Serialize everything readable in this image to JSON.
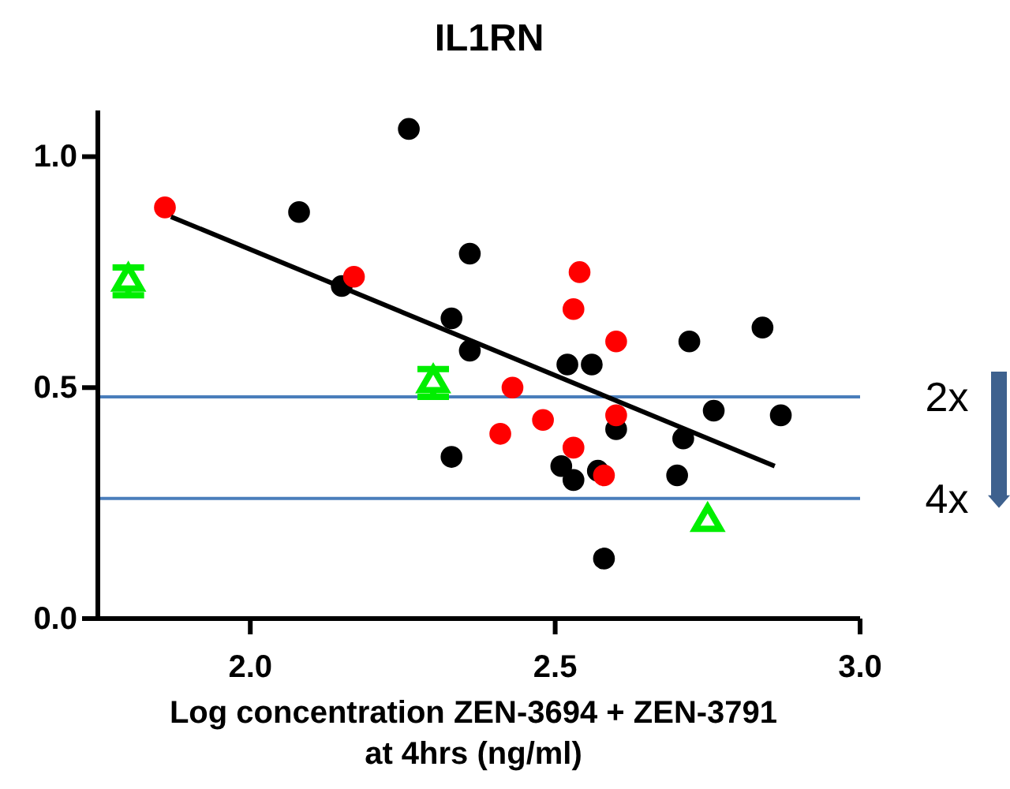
{
  "chart_data": {
    "type": "scatter",
    "title": "IL1RN",
    "xlabel": "Log concentration ZEN-3694 + ZEN-3791\nat 4hrs (ng/ml)",
    "xlim": [
      1.75,
      3.0
    ],
    "xticks": [
      {
        "value": 2.0,
        "label": "2.0"
      },
      {
        "value": 2.5,
        "label": "2.5"
      },
      {
        "value": 3.0,
        "label": "3.0"
      }
    ],
    "ylim": [
      0,
      1.1
    ],
    "yticks": [
      {
        "value": 0,
        "label": "0.0"
      },
      {
        "value": 0.5,
        "label": "0.5"
      },
      {
        "value": 1.0,
        "label": "1.0"
      }
    ],
    "grid": false,
    "ref_lines": [
      {
        "axis": "y",
        "value": 0.48,
        "label": "2x",
        "color": "#4a7ebb"
      },
      {
        "axis": "y",
        "value": 0.26,
        "label": "4x",
        "color": "#4a7ebb"
      }
    ],
    "series": [
      {
        "marker": "circle",
        "color": "#000000",
        "x": [
          2.08,
          2.15,
          2.26,
          2.36,
          2.33,
          2.36,
          2.33,
          2.52,
          2.56,
          2.72,
          2.84,
          2.76,
          2.87,
          2.6,
          2.71,
          2.51,
          2.53,
          2.57,
          2.7,
          2.58
        ],
        "values": [
          0.88,
          0.72,
          1.06,
          0.79,
          0.65,
          0.58,
          0.35,
          0.55,
          0.55,
          0.6,
          0.63,
          0.45,
          0.44,
          0.41,
          0.39,
          0.33,
          0.3,
          0.32,
          0.31,
          0.13
        ]
      },
      {
        "marker": "circle",
        "color": "#ff0000",
        "x": [
          1.86,
          2.17,
          2.54,
          2.53,
          2.6,
          2.43,
          2.41,
          2.48,
          2.53,
          2.6,
          2.58
        ],
        "values": [
          0.89,
          0.74,
          0.75,
          0.67,
          0.6,
          0.5,
          0.4,
          0.43,
          0.37,
          0.44,
          0.31
        ]
      },
      {
        "marker": "triangle",
        "color": "#00ee00",
        "x": [
          1.8,
          2.3,
          2.75
        ],
        "values": [
          0.73,
          0.51,
          0.21
        ],
        "errors": [
          0.03,
          0.03,
          null
        ]
      },
      {
        "type": "line",
        "color": "#000000",
        "x": [
          1.87,
          2.86
        ],
        "values": [
          0.87,
          0.33
        ]
      }
    ]
  }
}
